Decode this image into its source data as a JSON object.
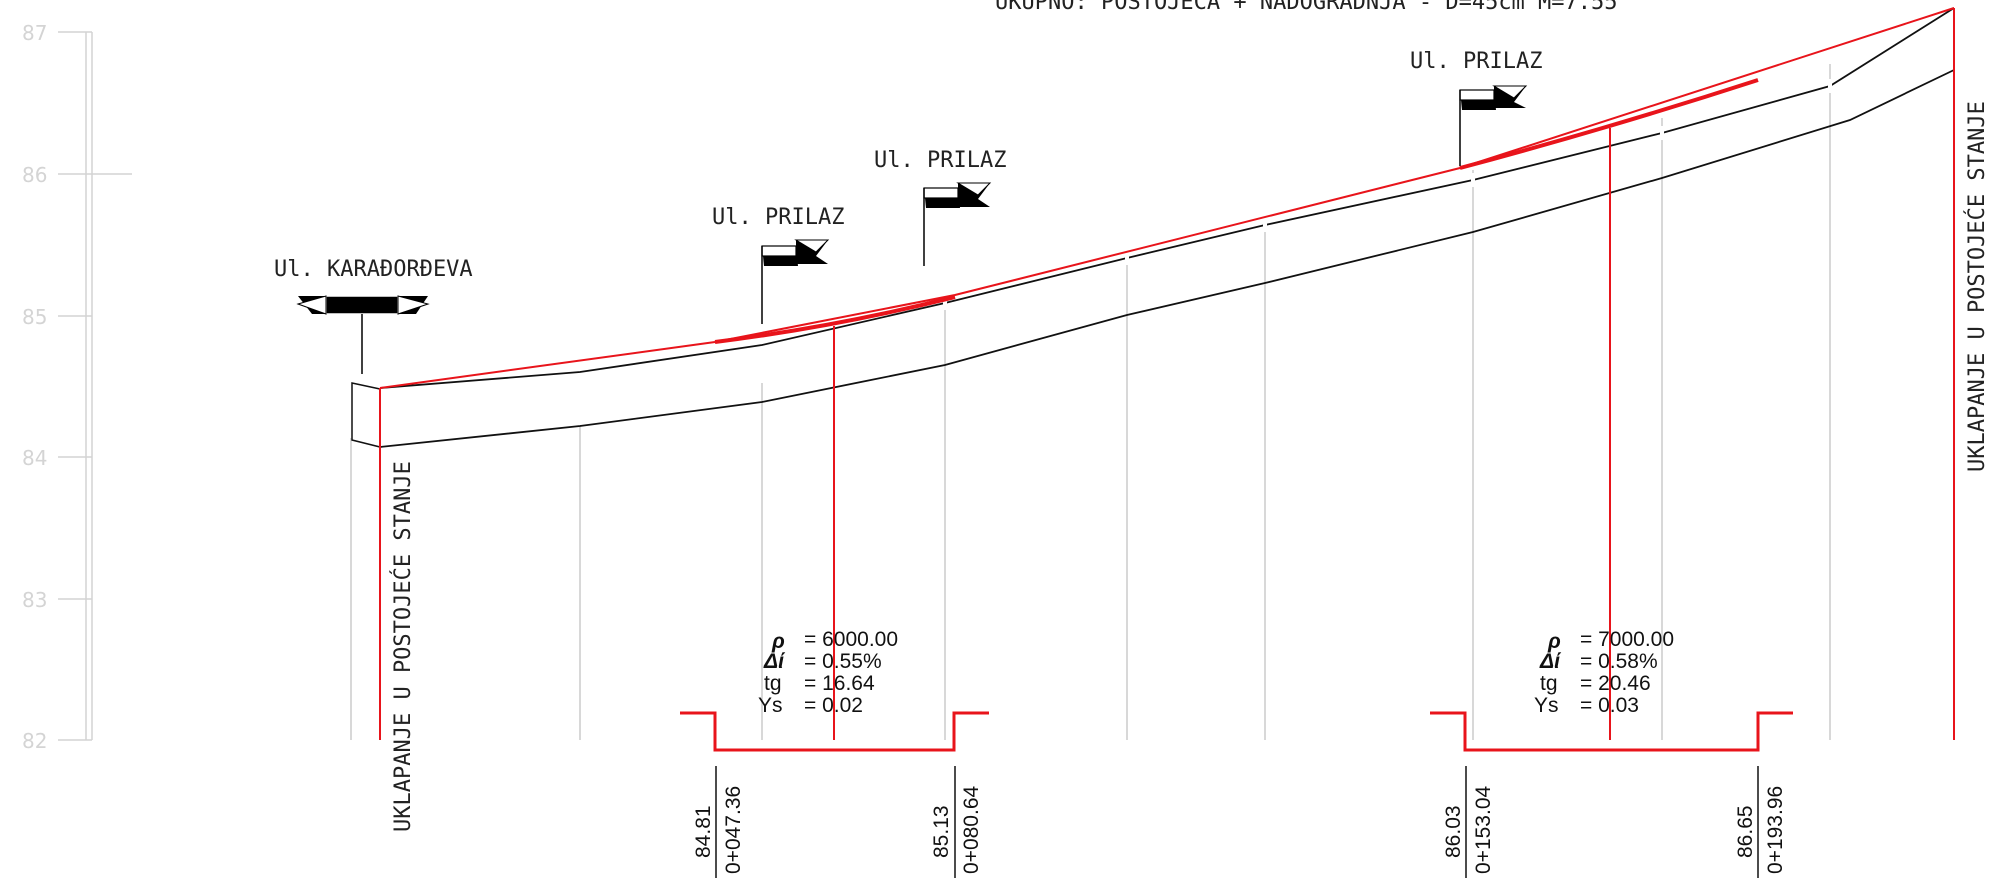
{
  "header": {
    "title": "UKUPNO: POSTOJEĆA + NADOGRADNJA - D=45cm M=7.55"
  },
  "elevation_axis": {
    "ticks": [
      "87",
      "86",
      "85",
      "84",
      "83",
      "82"
    ]
  },
  "street_labels": [
    "Ul. KARAĐORĐEVA",
    "Ul. PRILAZ",
    "Ul. PRILAZ",
    "Ul. PRILAZ"
  ],
  "tie_in_labels": {
    "start": "UKLAPANJE U POSTOJEĆE STANJE",
    "end": "UKLAPANJE U POSTOJEĆE STANJE"
  },
  "vertical_curves": [
    {
      "radius": "= 6000.00",
      "delta": "= 0.55%",
      "tg": "= 16.64",
      "ys": "= 0.02"
    },
    {
      "radius": "= 7000.00",
      "delta": "= 0.58%",
      "tg": "= 20.46",
      "ys": "= 0.03"
    }
  ],
  "curve_param_labels": {
    "radius": "ρ",
    "delta": "Δί",
    "tg": "tg",
    "ys": "Ys"
  },
  "stations": [
    {
      "elevation": "84.81",
      "chainage": "0+047.36"
    },
    {
      "elevation": "85.13",
      "chainage": "0+080.64"
    },
    {
      "elevation": "86.03",
      "chainage": "0+153.04"
    },
    {
      "elevation": "86.65",
      "chainage": "0+193.96"
    }
  ]
}
